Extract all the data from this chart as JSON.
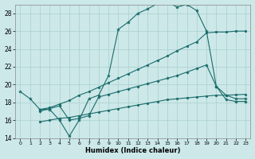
{
  "xlabel": "Humidex (Indice chaleur)",
  "xlim": [
    -0.5,
    23.5
  ],
  "ylim": [
    14,
    29
  ],
  "xticks": [
    0,
    1,
    2,
    3,
    4,
    5,
    6,
    7,
    8,
    9,
    10,
    11,
    12,
    13,
    14,
    15,
    16,
    17,
    18,
    19,
    20,
    21,
    22,
    23
  ],
  "yticks": [
    14,
    16,
    18,
    20,
    22,
    24,
    26,
    28
  ],
  "bg_color": "#cce8e8",
  "grid_color": "#aacfcf",
  "line_color": "#1a6b6b",
  "line1_x": [
    0,
    1,
    2,
    3,
    4,
    5,
    6,
    7,
    8,
    9,
    10,
    11,
    12,
    13,
    14,
    15,
    16,
    17,
    18,
    19,
    20,
    21,
    22,
    23
  ],
  "line1_y": [
    19.2,
    18.4,
    17.2,
    17.2,
    16.0,
    14.2,
    16.0,
    18.4,
    18.8,
    21.0,
    26.2,
    27.0,
    28.0,
    28.5,
    29.1,
    29.3,
    28.7,
    29.0,
    28.3,
    26.0,
    19.8,
    18.8,
    18.4,
    18.4
  ],
  "line2_x": [
    2,
    3,
    4,
    5,
    6,
    7,
    8,
    9,
    10,
    11,
    12,
    13,
    14,
    15,
    16,
    17,
    18,
    19,
    20,
    21,
    22,
    23
  ],
  "line2_y": [
    17.2,
    17.4,
    17.8,
    18.2,
    18.8,
    19.2,
    19.7,
    20.2,
    20.7,
    21.2,
    21.7,
    22.2,
    22.7,
    23.2,
    23.8,
    24.3,
    24.8,
    25.8,
    25.9,
    25.9,
    26.0,
    26.0
  ],
  "line3_x": [
    2,
    3,
    4,
    5,
    6,
    7,
    8,
    9,
    10,
    11,
    12,
    13,
    14,
    15,
    16,
    17,
    18,
    19,
    20,
    21,
    22,
    23
  ],
  "line3_y": [
    15.8,
    16.0,
    16.2,
    16.3,
    16.5,
    16.7,
    16.9,
    17.1,
    17.3,
    17.5,
    17.7,
    17.9,
    18.1,
    18.3,
    18.4,
    18.5,
    18.6,
    18.7,
    18.8,
    18.8,
    18.85,
    18.9
  ],
  "line4_x": [
    2,
    3,
    4,
    5,
    6,
    7,
    8,
    9,
    10,
    11,
    12,
    13,
    14,
    15,
    16,
    17,
    18,
    19,
    20,
    21,
    22,
    23
  ],
  "line4_y": [
    17.0,
    17.3,
    17.6,
    16.0,
    16.2,
    16.5,
    18.6,
    18.9,
    19.2,
    19.5,
    19.8,
    20.1,
    20.4,
    20.7,
    21.0,
    21.4,
    21.8,
    22.2,
    19.8,
    18.3,
    18.1,
    18.1
  ]
}
